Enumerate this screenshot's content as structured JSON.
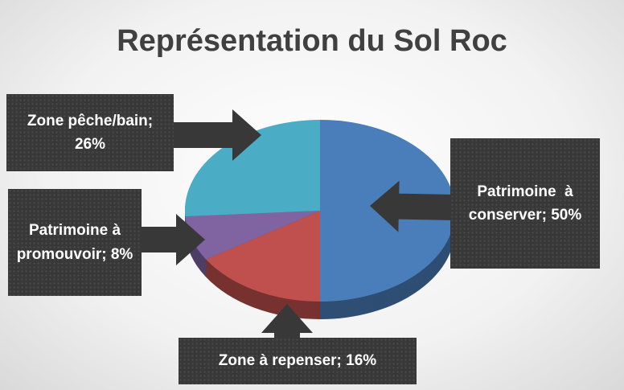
{
  "chart_data": {
    "type": "pie",
    "title": "Représentation du Sol Roc",
    "values": [
      50,
      16,
      8,
      26
    ],
    "value_labels": [
      "Patrimoine  à conserver; 50%",
      "Zone à repenser; 16%",
      "Patrimoine à promouvoir; 8%",
      "Zone pêche/bain; 26%"
    ],
    "colors": [
      "#4a7ebb",
      "#c0504d",
      "#8064a2",
      "#4bacc6"
    ]
  }
}
